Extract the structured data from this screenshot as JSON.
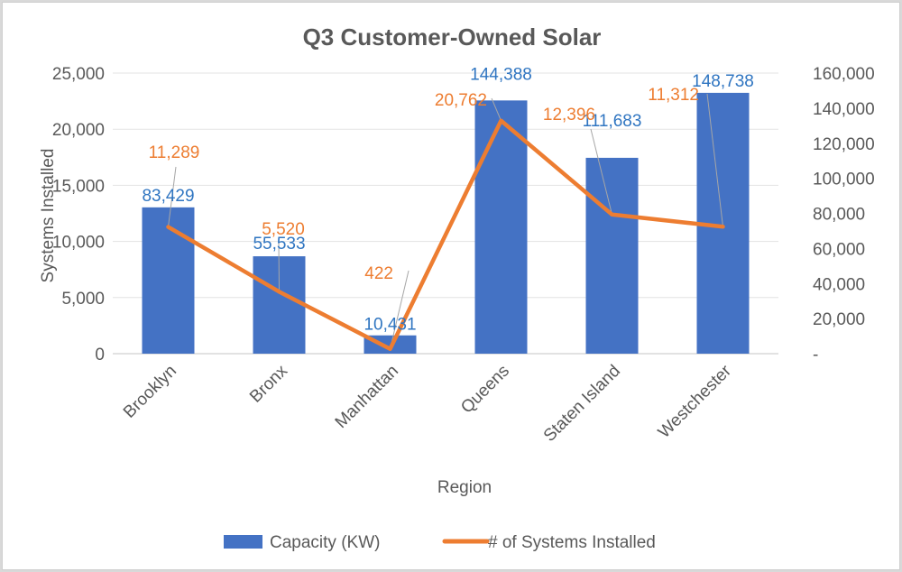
{
  "chart_data": {
    "type": "bar",
    "title": "Q3 Customer-Owned Solar",
    "xlabel": "Region",
    "ylabel": "Systems Installed",
    "y2label": "",
    "categories": [
      "Brooklyn",
      "Bronx",
      "Manhattan",
      "Queens",
      "Staten Island",
      "Westchester"
    ],
    "series": [
      {
        "name": "Capacity (KW)",
        "type": "bar",
        "axis": "right",
        "color": "#4472c4",
        "label_color": "#2f75c1",
        "values": [
          83429,
          55533,
          10431,
          144388,
          111683,
          148738
        ],
        "labels": [
          "83,429",
          "55,533",
          "10,431",
          "144,388",
          "111,683",
          "148,738"
        ]
      },
      {
        "name": "# of Systems Installed",
        "type": "line",
        "axis": "left",
        "color": "#ed7d31",
        "label_color": "#ed7d31",
        "values": [
          11289,
          5520,
          422,
          20762,
          12396,
          11312
        ],
        "labels": [
          "11,289",
          "5,520",
          "422",
          "20,762",
          "12,396",
          "11,312"
        ]
      }
    ],
    "ylim": [
      0,
      25000
    ],
    "y2lim": [
      0,
      160000
    ],
    "yticks": [
      "0",
      "5,000",
      "10,000",
      "15,000",
      "20,000",
      "25,000"
    ],
    "y2ticks": [
      "-",
      "20,000",
      "40,000",
      "60,000",
      "80,000",
      "100,000",
      "120,000",
      "140,000",
      "160,000"
    ],
    "grid": true,
    "legend": "bottom"
  }
}
